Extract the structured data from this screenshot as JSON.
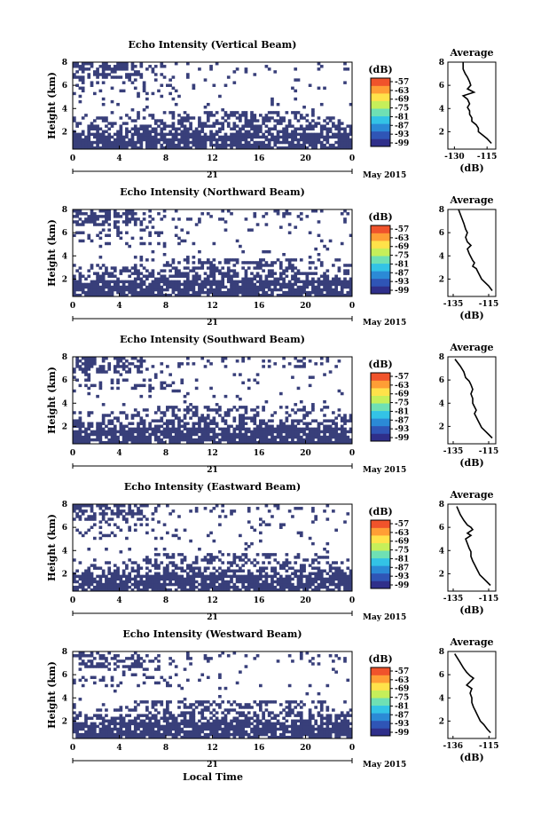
{
  "figure": {
    "xlabel_bottom": "Local Time",
    "colors": {
      "echo_fill": "#383f7a",
      "colorbar": [
        "#2f2f8a",
        "#2f55b6",
        "#2b8ad6",
        "#33c3e6",
        "#6fe0b4",
        "#c6ef5a",
        "#ffe24a",
        "#ff9e35",
        "#f0532b"
      ]
    }
  },
  "chart_data": [
    {
      "type": "heatmap",
      "title": "Echo Intensity (Vertical Beam)",
      "ylabel": "Height (km)",
      "yticks": [
        "2",
        "4",
        "6",
        "8"
      ],
      "ylim": [
        0.5,
        8
      ],
      "xticks": [
        "0",
        "4",
        "8",
        "12",
        "16",
        "20",
        "0"
      ],
      "xlim": [
        0,
        24
      ],
      "date_day": "21",
      "date_month": "May 2015",
      "colorbar": {
        "unit": "(dB)",
        "ticks": [
          "-57",
          "-63",
          "-69",
          "-75",
          "-81",
          "-87",
          "-93",
          "-99"
        ]
      },
      "profile": {
        "title": "Average",
        "xlabel": "(dB)",
        "xticks": [
          "-130",
          "-115"
        ],
        "xlim": [
          -133,
          -111
        ],
        "ylim": [
          0.5,
          8
        ],
        "points": [
          [
            -126,
            8.0
          ],
          [
            -126,
            7.4
          ],
          [
            -125,
            7.0
          ],
          [
            -124,
            6.7
          ],
          [
            -123,
            6.3
          ],
          [
            -122.5,
            6.0
          ],
          [
            -124,
            5.7
          ],
          [
            -121,
            5.4
          ],
          [
            -126,
            5.1
          ],
          [
            -124,
            4.8
          ],
          [
            -123,
            4.4
          ],
          [
            -124,
            4.1
          ],
          [
            -123,
            3.8
          ],
          [
            -123,
            3.5
          ],
          [
            -122,
            3.2
          ],
          [
            -122,
            2.9
          ],
          [
            -120,
            2.6
          ],
          [
            -119,
            2.3
          ],
          [
            -119,
            2.0
          ],
          [
            -117,
            1.7
          ],
          [
            -115,
            1.4
          ],
          [
            -113,
            1.0
          ]
        ]
      }
    },
    {
      "type": "heatmap",
      "title": "Echo Intensity (Northward Beam)",
      "ylabel": "Height (km)",
      "yticks": [
        "2",
        "4",
        "6",
        "8"
      ],
      "ylim": [
        0.5,
        8
      ],
      "xticks": [
        "0",
        "4",
        "8",
        "12",
        "16",
        "20",
        "0"
      ],
      "xlim": [
        0,
        24
      ],
      "date_day": "21",
      "date_month": "May 2015",
      "colorbar": {
        "unit": "(dB)",
        "ticks": [
          "-57",
          "-63",
          "-69",
          "-75",
          "-81",
          "-87",
          "-93",
          "-99"
        ]
      },
      "profile": {
        "title": "Average",
        "xlabel": "(dB)",
        "xticks": [
          "-135",
          "-115"
        ],
        "xlim": [
          -138,
          -111
        ],
        "ylim": [
          0.5,
          8
        ],
        "points": [
          [
            -132,
            8.0
          ],
          [
            -130,
            7.2
          ],
          [
            -129,
            6.8
          ],
          [
            -128,
            6.3
          ],
          [
            -127,
            6.0
          ],
          [
            -128,
            5.6
          ],
          [
            -127,
            5.2
          ],
          [
            -125,
            4.9
          ],
          [
            -127,
            4.6
          ],
          [
            -126,
            4.2
          ],
          [
            -125,
            3.9
          ],
          [
            -124,
            3.6
          ],
          [
            -123,
            3.4
          ],
          [
            -124,
            3.1
          ],
          [
            -122,
            2.9
          ],
          [
            -121,
            2.6
          ],
          [
            -120,
            2.3
          ],
          [
            -119,
            2.0
          ],
          [
            -117,
            1.7
          ],
          [
            -115,
            1.4
          ],
          [
            -113,
            1.0
          ]
        ]
      }
    },
    {
      "type": "heatmap",
      "title": "Echo Intensity (Southward Beam)",
      "ylabel": "Height (km)",
      "yticks": [
        "2",
        "4",
        "6",
        "8"
      ],
      "ylim": [
        0.5,
        8
      ],
      "xticks": [
        "0",
        "4",
        "8",
        "12",
        "16",
        "20",
        "0"
      ],
      "xlim": [
        0,
        24
      ],
      "date_day": "21",
      "date_month": "May 2015",
      "colorbar": {
        "unit": "(dB)",
        "ticks": [
          "-57",
          "-63",
          "-69",
          "-75",
          "-81",
          "-87",
          "-93",
          "-99"
        ]
      },
      "profile": {
        "title": "Average",
        "xlabel": "(dB)",
        "xticks": [
          "-135",
          "-115"
        ],
        "xlim": [
          -138,
          -111
        ],
        "ylim": [
          0.5,
          8
        ],
        "points": [
          [
            -134,
            7.8
          ],
          [
            -131,
            7.2
          ],
          [
            -129,
            6.7
          ],
          [
            -128,
            6.2
          ],
          [
            -126,
            5.9
          ],
          [
            -125,
            5.6
          ],
          [
            -124,
            5.2
          ],
          [
            -125,
            4.8
          ],
          [
            -124,
            4.4
          ],
          [
            -124,
            4.0
          ],
          [
            -123,
            3.7
          ],
          [
            -122,
            3.4
          ],
          [
            -123,
            3.1
          ],
          [
            -122,
            2.8
          ],
          [
            -121,
            2.5
          ],
          [
            -120,
            2.2
          ],
          [
            -119,
            1.9
          ],
          [
            -117,
            1.6
          ],
          [
            -115,
            1.3
          ],
          [
            -113,
            1.0
          ]
        ]
      }
    },
    {
      "type": "heatmap",
      "title": "Echo Intensity (Eastward Beam)",
      "ylabel": "Height (km)",
      "yticks": [
        "2",
        "4",
        "6",
        "8"
      ],
      "ylim": [
        0.5,
        8
      ],
      "xticks": [
        "0",
        "4",
        "8",
        "12",
        "16",
        "20",
        "0"
      ],
      "xlim": [
        0,
        24
      ],
      "date_day": "21",
      "date_month": "May 2015",
      "colorbar": {
        "unit": "(dB)",
        "ticks": [
          "-57",
          "-63",
          "-69",
          "-75",
          "-81",
          "-87",
          "-93",
          "-99"
        ]
      },
      "profile": {
        "title": "Average",
        "xlabel": "(dB)",
        "xticks": [
          "-135",
          "-115"
        ],
        "xlim": [
          -138,
          -111
        ],
        "ylim": [
          0.5,
          8
        ],
        "points": [
          [
            -133,
            7.8
          ],
          [
            -131,
            7.1
          ],
          [
            -129,
            6.6
          ],
          [
            -127,
            6.2
          ],
          [
            -125,
            6.0
          ],
          [
            -124,
            5.8
          ],
          [
            -127,
            5.5
          ],
          [
            -125,
            5.3
          ],
          [
            -128,
            5.0
          ],
          [
            -127,
            4.6
          ],
          [
            -126,
            4.2
          ],
          [
            -125,
            3.9
          ],
          [
            -125,
            3.5
          ],
          [
            -124,
            3.1
          ],
          [
            -123,
            2.8
          ],
          [
            -122,
            2.5
          ],
          [
            -121,
            2.2
          ],
          [
            -120,
            1.9
          ],
          [
            -118,
            1.6
          ],
          [
            -116,
            1.3
          ],
          [
            -114,
            1.0
          ]
        ]
      }
    },
    {
      "type": "heatmap",
      "title": "Echo Intensity (Westward Beam)",
      "ylabel": "Height (km)",
      "yticks": [
        "2",
        "4",
        "6",
        "8"
      ],
      "ylim": [
        0.5,
        8
      ],
      "xticks": [
        "0",
        "4",
        "8",
        "12",
        "16",
        "20",
        "0"
      ],
      "xlim": [
        0,
        24
      ],
      "date_day": "21",
      "date_month": "May 2015",
      "colorbar": {
        "unit": "(dB)",
        "ticks": [
          "-57",
          "-63",
          "-69",
          "-75",
          "-81",
          "-87",
          "-93",
          "-99"
        ]
      },
      "profile": {
        "title": "Average",
        "xlabel": "(dB)",
        "xticks": [
          "-136",
          "-115"
        ],
        "xlim": [
          -139,
          -111
        ],
        "ylim": [
          0.5,
          8
        ],
        "points": [
          [
            -135,
            7.8
          ],
          [
            -132,
            7.1
          ],
          [
            -130,
            6.6
          ],
          [
            -128,
            6.2
          ],
          [
            -126,
            5.9
          ],
          [
            -124,
            5.7
          ],
          [
            -126,
            5.4
          ],
          [
            -128,
            5.1
          ],
          [
            -125,
            4.8
          ],
          [
            -126,
            4.4
          ],
          [
            -125,
            4.0
          ],
          [
            -125,
            3.6
          ],
          [
            -124,
            3.2
          ],
          [
            -123,
            2.9
          ],
          [
            -122,
            2.6
          ],
          [
            -121,
            2.3
          ],
          [
            -120,
            2.0
          ],
          [
            -118,
            1.7
          ],
          [
            -116,
            1.3
          ],
          [
            -114,
            1.0
          ]
        ]
      }
    }
  ]
}
